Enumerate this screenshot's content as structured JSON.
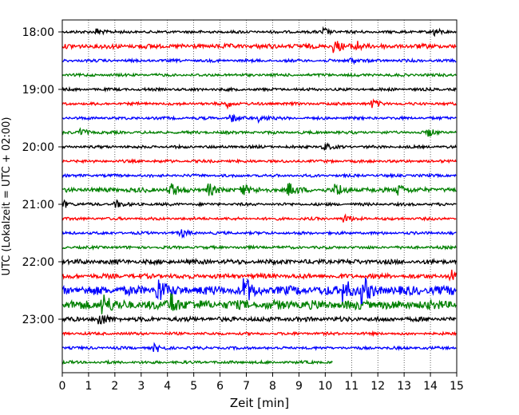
{
  "chart_data": {
    "type": "line",
    "title": "",
    "xlabel": "Zeit  [min]",
    "ylabel": "UTC (Lokalzeit = UTC + 02:00)",
    "xlim": [
      0,
      15
    ],
    "x_ticks": [
      0,
      1,
      2,
      3,
      4,
      5,
      6,
      7,
      8,
      9,
      10,
      11,
      12,
      13,
      14,
      15
    ],
    "x_tick_labels": [
      "0",
      "1",
      "2",
      "3",
      "4",
      "5",
      "6",
      "7",
      "8",
      "9",
      "10",
      "11",
      "12",
      "13",
      "14",
      "15"
    ],
    "y_tick_labels": [
      "18:00",
      "19:00",
      "20:00",
      "21:00",
      "22:00",
      "23:00"
    ],
    "grid": "x-dotted",
    "line_colors": [
      "#000000",
      "#ff0000",
      "#0000ff",
      "#008000"
    ],
    "traces": [
      {
        "start": "18:00",
        "end_min": 15,
        "color": "#000000",
        "amp": "low",
        "events_min": [
          1.4,
          10.0,
          14.2
        ]
      },
      {
        "start": "18:15",
        "end_min": 15,
        "color": "#ff0000",
        "amp": "medium",
        "events_min": [
          10.4,
          11.2
        ]
      },
      {
        "start": "18:30",
        "end_min": 15,
        "color": "#0000ff",
        "amp": "low",
        "events_min": [
          11.0
        ]
      },
      {
        "start": "18:45",
        "end_min": 15,
        "color": "#008000",
        "amp": "low",
        "events_min": []
      },
      {
        "start": "19:00",
        "end_min": 15,
        "color": "#000000",
        "amp": "low",
        "events_min": []
      },
      {
        "start": "19:15",
        "end_min": 15,
        "color": "#ff0000",
        "amp": "low",
        "events_min": [
          6.3,
          11.9
        ]
      },
      {
        "start": "19:30",
        "end_min": 15,
        "color": "#0000ff",
        "amp": "low",
        "events_min": [
          6.5,
          7.6
        ]
      },
      {
        "start": "19:45",
        "end_min": 15,
        "color": "#008000",
        "amp": "low",
        "events_min": [
          0.8,
          14.0
        ]
      },
      {
        "start": "20:00",
        "end_min": 15,
        "color": "#000000",
        "amp": "low",
        "events_min": [
          10.0
        ]
      },
      {
        "start": "20:15",
        "end_min": 15,
        "color": "#ff0000",
        "amp": "low",
        "events_min": []
      },
      {
        "start": "20:30",
        "end_min": 15,
        "color": "#0000ff",
        "amp": "low",
        "events_min": []
      },
      {
        "start": "20:45",
        "end_min": 15,
        "color": "#008000",
        "amp": "medium",
        "events_min": [
          4.2,
          5.6,
          6.9,
          8.7,
          10.5,
          12.8
        ]
      },
      {
        "start": "21:00",
        "end_min": 15,
        "color": "#000000",
        "amp": "low",
        "events_min": [
          0.1,
          2.1
        ]
      },
      {
        "start": "21:15",
        "end_min": 15,
        "color": "#ff0000",
        "amp": "low",
        "events_min": [
          10.8
        ]
      },
      {
        "start": "21:30",
        "end_min": 15,
        "color": "#0000ff",
        "amp": "low",
        "events_min": [
          4.6
        ]
      },
      {
        "start": "21:45",
        "end_min": 15,
        "color": "#008000",
        "amp": "low",
        "events_min": []
      },
      {
        "start": "22:00",
        "end_min": 15,
        "color": "#000000",
        "amp": "medium",
        "events_min": []
      },
      {
        "start": "22:15",
        "end_min": 15,
        "color": "#ff0000",
        "amp": "medium",
        "events_min": [
          14.8
        ]
      },
      {
        "start": "22:30",
        "end_min": 15,
        "color": "#0000ff",
        "amp": "high",
        "events_min": [
          3.7,
          7.0,
          10.8,
          11.5
        ]
      },
      {
        "start": "22:45",
        "end_min": 15,
        "color": "#008000",
        "amp": "high",
        "events_min": [
          1.6,
          4.2
        ]
      },
      {
        "start": "23:00",
        "end_min": 15,
        "color": "#000000",
        "amp": "medium",
        "events_min": [
          1.5
        ]
      },
      {
        "start": "23:15",
        "end_min": 15,
        "color": "#ff0000",
        "amp": "low",
        "events_min": []
      },
      {
        "start": "23:30",
        "end_min": 15,
        "color": "#0000ff",
        "amp": "low",
        "events_min": [
          3.6
        ]
      },
      {
        "start": "23:45",
        "end_min": 10.3,
        "color": "#008000",
        "amp": "low",
        "events_min": []
      }
    ]
  }
}
